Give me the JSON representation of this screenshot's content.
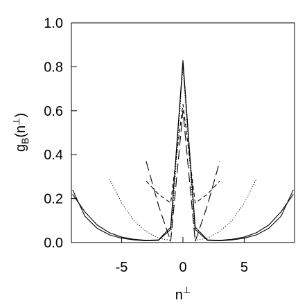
{
  "chart_data": {
    "type": "line",
    "xlabel": [
      "n",
      "⊥"
    ],
    "ylabel": [
      "g",
      "B",
      "(n",
      "⊥",
      ")"
    ],
    "xlim": [
      -9.1,
      9.1
    ],
    "xticks": [
      -5,
      0,
      5
    ],
    "ylim": [
      0,
      1
    ],
    "yticks": [
      {
        "value": 0,
        "label": "0.0"
      },
      {
        "value": 0.2,
        "label": "0.2"
      },
      {
        "value": 0.4,
        "label": "0.4"
      },
      {
        "value": 0.6,
        "label": "0.6"
      },
      {
        "value": 0.8,
        "label": "0.8"
      },
      {
        "value": 1,
        "label": "1.0"
      }
    ],
    "grid": false,
    "series": [
      {
        "color": "#000000",
        "dash": "solid",
        "x": [
          -9,
          -8,
          -7,
          -6,
          -5,
          -4,
          -3,
          -2,
          -1,
          0,
          1,
          2,
          3,
          4,
          5,
          6,
          7,
          8,
          9
        ],
        "values": [
          0.24,
          0.12,
          0.065,
          0.035,
          0.02,
          0.012,
          0.008,
          0.01,
          0.06,
          0.83,
          0.06,
          0.01,
          0.008,
          0.012,
          0.02,
          0.035,
          0.065,
          0.12,
          0.24
        ]
      },
      {
        "color": "#000000",
        "dash": "solid",
        "x": [
          -9,
          -8,
          -7,
          -6,
          -5,
          -4,
          -3,
          -2,
          -1,
          0,
          1,
          2,
          3,
          4,
          5,
          6,
          7,
          8,
          9
        ],
        "values": [
          0.22,
          0.14,
          0.08,
          0.045,
          0.025,
          0.015,
          0.01,
          0.012,
          0.07,
          0.82,
          0.07,
          0.012,
          0.01,
          0.015,
          0.025,
          0.045,
          0.08,
          0.14,
          0.22
        ]
      },
      {
        "color": "#000000",
        "dash": "dotted",
        "x": [
          -6,
          -5,
          -4,
          -3,
          -2,
          -1,
          0,
          1,
          2,
          3,
          4,
          5,
          6
        ],
        "values": [
          0.29,
          0.18,
          0.1,
          0.05,
          0.02,
          0.01,
          0.8,
          0.01,
          0.02,
          0.05,
          0.1,
          0.18,
          0.29
        ]
      },
      {
        "color": "#000000",
        "dash": "short",
        "x": [
          -3,
          -2,
          -1,
          0,
          1,
          2,
          3
        ],
        "values": [
          0.28,
          0.22,
          0.18,
          0.63,
          0.18,
          0.22,
          0.28
        ]
      },
      {
        "color": "#000000",
        "dash": "long",
        "x": [
          -3,
          -2,
          -1,
          0,
          1,
          2,
          3
        ],
        "values": [
          0.37,
          0.17,
          0.005,
          0.6,
          0.005,
          0.17,
          0.37
        ]
      }
    ]
  }
}
